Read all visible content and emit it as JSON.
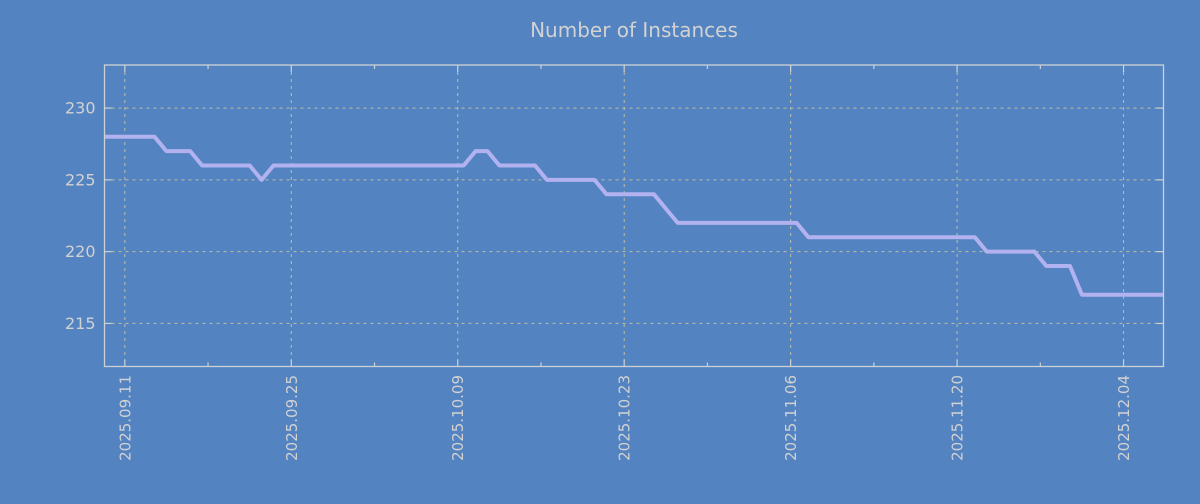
{
  "chart_data": {
    "type": "line",
    "title": "Number of Instances",
    "ylabel": "",
    "xlabel": "",
    "ylim": [
      212,
      233
    ],
    "yticks": [
      215,
      220,
      225,
      230
    ],
    "grid": true,
    "legend": "none",
    "x_axis": {
      "tick_labels": [
        "2025.09.11",
        "2025.09.25",
        "2025.10.09",
        "2025.10.23",
        "2025.11.06",
        "2025.11.20",
        "2025.12.04"
      ],
      "tick_interval_days": 14,
      "minor_tick_interval_days": 7,
      "range_days": [
        -1.71,
        87.36
      ]
    },
    "series": [
      {
        "name": "instances",
        "start_date": "2025-09-08",
        "cadence": "daily",
        "sample_hour": 12,
        "values": [
          228,
          228,
          228,
          228,
          228,
          228,
          227,
          227,
          227,
          226,
          226,
          226,
          226,
          226,
          225,
          226,
          226,
          226,
          226,
          226,
          226,
          226,
          226,
          226,
          226,
          226,
          226,
          226,
          226,
          226,
          226,
          226,
          227,
          227,
          226,
          226,
          226,
          226,
          225,
          225,
          225,
          225,
          225,
          224,
          224,
          224,
          224,
          224,
          223,
          222,
          222,
          222,
          222,
          222,
          222,
          222,
          222,
          222,
          222,
          222,
          221,
          221,
          221,
          221,
          221,
          221,
          221,
          221,
          221,
          221,
          221,
          221,
          221,
          221,
          221,
          220,
          220,
          220,
          220,
          220,
          219,
          219,
          219,
          217,
          217,
          217,
          217,
          217,
          217,
          217,
          217,
          217
        ]
      }
    ],
    "colors": {
      "background": "#5383c0",
      "line": "#b3b2f0",
      "grid": "#bfbfa3",
      "border": "#ccd1d5",
      "text": "#d2d2d2"
    }
  }
}
